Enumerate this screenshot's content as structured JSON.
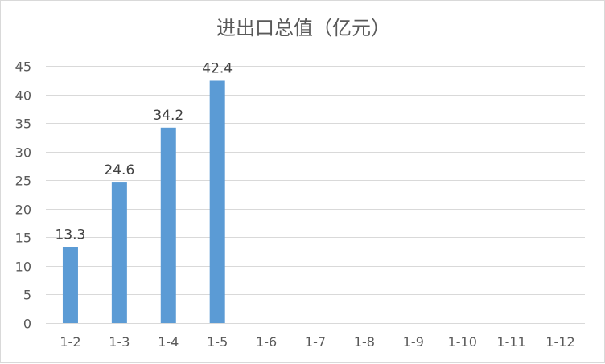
{
  "chart_data": {
    "type": "bar",
    "title": "进出口总值（亿元）",
    "xlabel": "",
    "ylabel": "",
    "categories": [
      "1-2",
      "1-3",
      "1-4",
      "1-5",
      "1-6",
      "1-7",
      "1-8",
      "1-9",
      "1-10",
      "1-11",
      "1-12"
    ],
    "values": [
      13.3,
      24.6,
      34.2,
      42.4,
      null,
      null,
      null,
      null,
      null,
      null,
      null
    ],
    "data_labels": [
      "13.3",
      "24.6",
      "34.2",
      "42.4",
      "",
      "",
      "",
      "",
      "",
      "",
      ""
    ],
    "ylim": [
      0,
      45
    ],
    "yticks": [
      "0",
      "5",
      "10",
      "15",
      "20",
      "25",
      "30",
      "35",
      "40",
      "45"
    ],
    "grid": true,
    "legend": "none",
    "bar_color": "#5b9bd5",
    "grid_color": "#d9d9d9",
    "text_color": "#595959"
  }
}
